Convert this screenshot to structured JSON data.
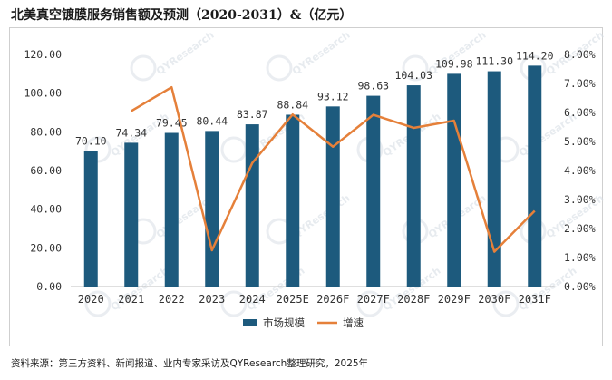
{
  "title": "北美真空镀膜服务销售额及预测（2020-2031）&（亿元）",
  "source": "资料来源：第三方资料、新闻报道、业内专家采访及QYResearch整理研究，2025年",
  "watermark": "QYResearch",
  "colors": {
    "bar": "#1d5a7d",
    "line": "#e5803a",
    "text": "#333333",
    "watermark": "#d8dfe6"
  },
  "chart_data": {
    "type": "bar+line",
    "categories": [
      "2020",
      "2021",
      "2022",
      "2023",
      "2024",
      "2025E",
      "2026F",
      "2027F",
      "2028F",
      "2029F",
      "2030F",
      "2031F"
    ],
    "series": [
      {
        "name": "市场规模",
        "type": "bar",
        "axis": "left",
        "values": [
          70.1,
          74.34,
          79.45,
          80.44,
          83.87,
          88.84,
          93.12,
          98.63,
          104.03,
          109.98,
          111.3,
          114.2
        ],
        "labels": [
          "70.10",
          "74.34",
          "79.45",
          "80.44",
          "83.87",
          "88.84",
          "93.12",
          "98.63",
          "104.03",
          "109.98",
          "111.30",
          "114.20"
        ]
      },
      {
        "name": "增速",
        "type": "line",
        "axis": "right",
        "values": [
          null,
          6.05,
          6.87,
          1.25,
          4.26,
          5.93,
          4.82,
          5.92,
          5.47,
          5.72,
          1.2,
          2.61
        ]
      }
    ],
    "left_axis": {
      "min": 0,
      "max": 120,
      "ticks": [
        "0.00",
        "20.00",
        "40.00",
        "60.00",
        "80.00",
        "100.00",
        "120.00"
      ]
    },
    "right_axis": {
      "min": 0,
      "max": 8,
      "ticks": [
        "0.00%",
        "1.00%",
        "2.00%",
        "3.00%",
        "4.00%",
        "5.00%",
        "6.00%",
        "7.00%",
        "8.00%"
      ]
    },
    "legend": {
      "position": "bottom-center",
      "items": [
        "市场规模",
        "增速"
      ]
    }
  }
}
